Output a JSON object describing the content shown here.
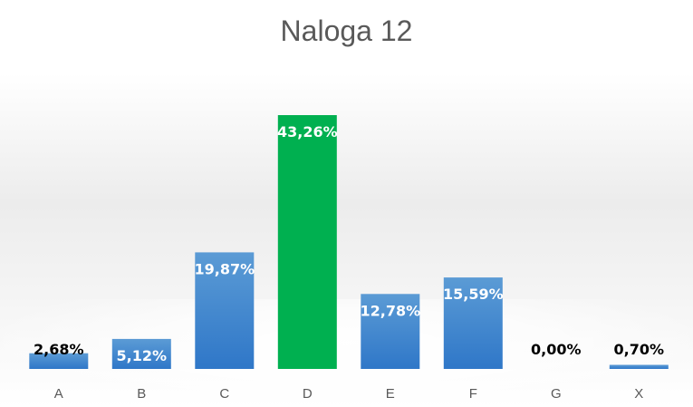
{
  "chart_data": {
    "type": "bar",
    "title": "Naloga 12",
    "categories": [
      "A",
      "B",
      "C",
      "D",
      "E",
      "F",
      "G",
      "X"
    ],
    "values": [
      2.68,
      5.12,
      19.87,
      43.26,
      12.78,
      15.59,
      0.0,
      0.7
    ],
    "data_labels": [
      "2,68%",
      "5,12%",
      "19,87%",
      "43,26%",
      "12,78%",
      "15,59%",
      "0,00%",
      "0,70%"
    ],
    "highlight_category": "D",
    "colors": {
      "bar": "#4a8fd6",
      "bar_top": "#5b9bd5",
      "bar_bottom": "#2f77c8",
      "highlight": "#00b050",
      "label_inside": "#ffffff",
      "label_outside": "#000000",
      "axis_text": "#595959"
    },
    "ylim": [
      0,
      45
    ],
    "grid": false,
    "legend": "none"
  }
}
